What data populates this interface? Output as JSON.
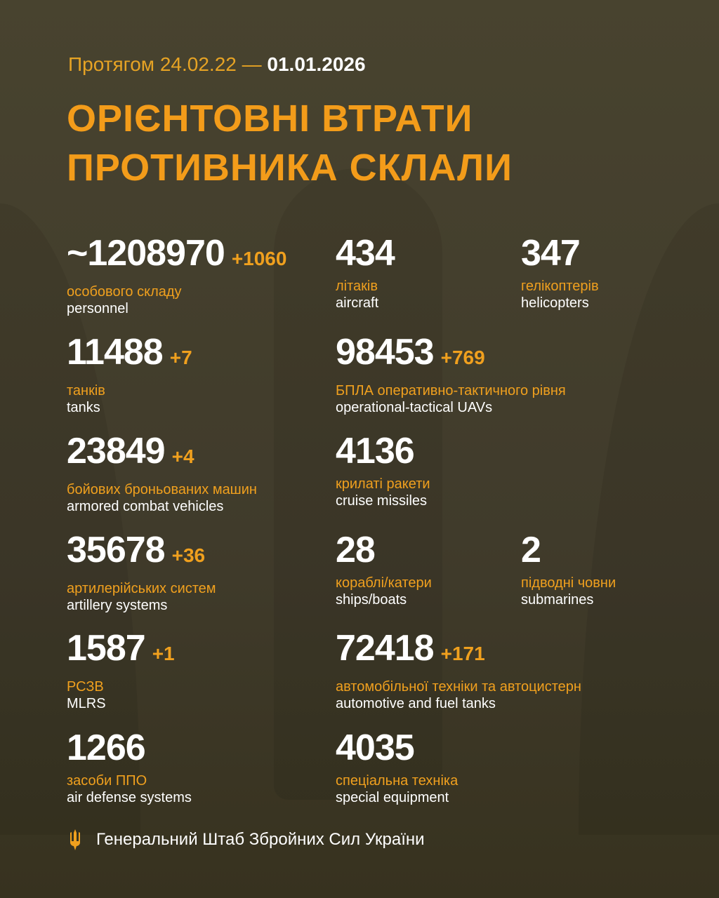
{
  "header": {
    "period_prefix": "Протягом 24.02.22 —",
    "period_end": "01.01.2026",
    "title_line1": "ОРІЄНТОВНІ ВТРАТИ",
    "title_line2": "ПРОТИВНИКА СКЛАЛИ"
  },
  "stats": [
    {
      "value": "~1208970",
      "delta": "+1060",
      "ua": "особового складу",
      "en": "personnel"
    },
    {
      "value": "434",
      "delta": "",
      "ua": "літаків",
      "en": "aircraft"
    },
    {
      "value": "347",
      "delta": "",
      "ua": "гелікоптерів",
      "en": "helicopters"
    },
    {
      "value": "11488",
      "delta": "+7",
      "ua": "танків",
      "en": "tanks"
    },
    {
      "value": "98453",
      "delta": "+769",
      "ua": "БПЛА оперативно-тактичного рівня",
      "en": "operational-tactical UAVs"
    },
    {
      "value": "23849",
      "delta": "+4",
      "ua": "бойових броньованих машин",
      "en": "armored combat vehicles"
    },
    {
      "value": "4136",
      "delta": "",
      "ua": "крилаті ракети",
      "en": "cruise missiles"
    },
    {
      "value": "35678",
      "delta": "+36",
      "ua": "артилерійських систем",
      "en": "artillery systems"
    },
    {
      "value": "28",
      "delta": "",
      "ua": "кораблі/катери",
      "en": "ships/boats"
    },
    {
      "value": "2",
      "delta": "",
      "ua": "підводні човни",
      "en": "submarines"
    },
    {
      "value": "1587",
      "delta": "+1",
      "ua": "РСЗВ",
      "en": "MLRS"
    },
    {
      "value": "72418",
      "delta": "+171",
      "ua": "автомобільної техніки та автоцистерн",
      "en": "automotive and fuel tanks"
    },
    {
      "value": "1266",
      "delta": "",
      "ua": "засоби ППО",
      "en": "air defense systems"
    },
    {
      "value": "4035",
      "delta": "",
      "ua": "спеціальна техніка",
      "en": "special equipment"
    }
  ],
  "footer": {
    "org": "Генеральний Штаб Збройних Сил України",
    "icon": "trident-icon"
  },
  "colors": {
    "accent": "#f0a01e",
    "background": "#443f2e",
    "text": "#ffffff"
  }
}
